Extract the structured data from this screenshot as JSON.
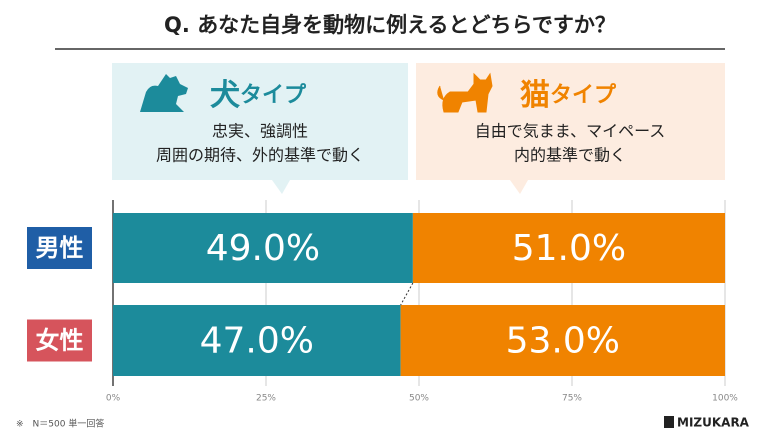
{
  "chart_data": {
    "type": "stacked_barh",
    "title": "Q. あなた自身を動物に例えるとどちらですか？",
    "categories": [
      "男性",
      "女性"
    ],
    "category_colors": [
      "#1f5ea6",
      "#d6545c"
    ],
    "series": [
      {
        "name": "犬タイプ",
        "color": "#1c8b9b",
        "values": [
          49.0,
          47.0
        ],
        "value_labels": [
          "49.0%",
          "47.0%"
        ],
        "description": [
          "忠実、強調性",
          "周囲の期待、外的基準で動く"
        ]
      },
      {
        "name": "猫タイプ",
        "color": "#f08300",
        "values": [
          51.0,
          53.0
        ],
        "value_labels": [
          "51.0%",
          "53.0%"
        ],
        "description": [
          "自由で気まま、マイペース",
          "内的基準で動く"
        ]
      }
    ],
    "xlim": [
      0,
      100
    ],
    "xticks": [
      {
        "value": 0,
        "label": "0%"
      },
      {
        "value": 25,
        "label": "25%"
      },
      {
        "value": 50,
        "label": "50%"
      },
      {
        "value": 75,
        "label": "75%"
      },
      {
        "value": 100,
        "label": "100%"
      }
    ],
    "grid": true,
    "note": "※　N＝500 単一回答",
    "brand": "MIZUKARA"
  }
}
